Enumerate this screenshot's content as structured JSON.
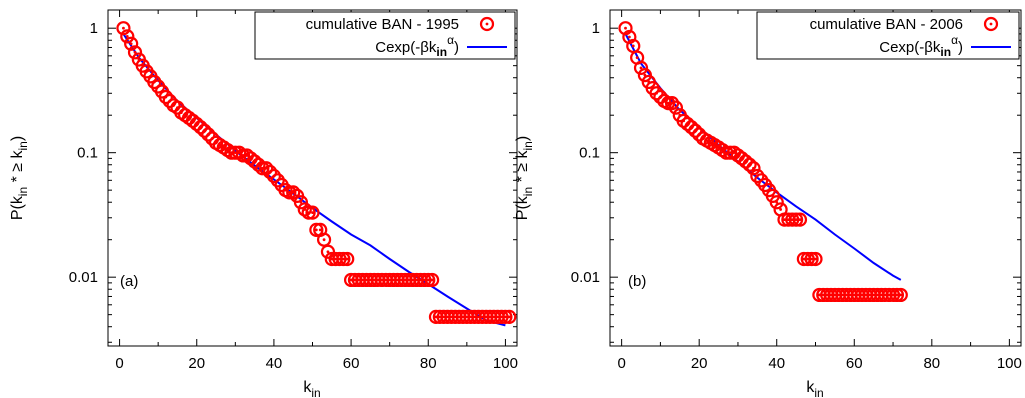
{
  "colors": {
    "series_marker": "#ff0000",
    "series_fit": "#0000ff",
    "axis": "#000000"
  },
  "chart_data": [
    {
      "type": "scatter",
      "panel_label": "(a)",
      "xlabel": {
        "main": "k",
        "sub": "in"
      },
      "ylabel": {
        "p": "P(k",
        "sub1": "in",
        "star": " * ≥ k",
        "sub2": "in",
        "close": ")"
      },
      "yscale": "log",
      "xlim": [
        -3,
        103
      ],
      "ylim": [
        0.0028,
        1.4
      ],
      "xticks": [
        0,
        20,
        40,
        60,
        80,
        100
      ],
      "xtick_labels": [
        "0",
        "20",
        "40",
        "60",
        "80",
        "100"
      ],
      "yticks": [
        1,
        0.1,
        0.01
      ],
      "ytick_labels": [
        "1",
        "0.1",
        "0.01"
      ],
      "legend": {
        "position": "top-right",
        "entries": [
          "cumulative BAN - 1995",
          "Cexp(-βk_in^α)"
        ]
      },
      "legend_fit": {
        "pre": "Cexp(-βk",
        "sub": "in",
        "sup": "α",
        "post": ")"
      },
      "series": [
        {
          "name": "cumulative BAN - 1995",
          "style": "marker",
          "x": [
            1,
            2,
            3,
            4,
            5,
            6,
            7,
            8,
            9,
            10,
            11,
            12,
            13,
            14,
            15,
            16,
            17,
            18,
            19,
            20,
            21,
            22,
            23,
            24,
            25,
            26,
            27,
            28,
            29,
            30,
            31,
            32,
            33,
            34,
            35,
            36,
            37,
            38,
            39,
            40,
            41,
            42,
            43,
            44,
            45,
            46,
            47,
            48,
            49,
            50,
            51,
            52,
            53,
            54,
            55,
            56,
            57,
            58,
            59,
            60,
            61,
            62,
            63,
            64,
            65,
            66,
            67,
            68,
            69,
            70,
            71,
            72,
            73,
            74,
            75,
            76,
            77,
            78,
            79,
            80,
            81,
            82,
            83,
            84,
            85,
            86,
            87,
            88,
            89,
            90,
            91,
            92,
            93,
            94,
            95,
            96,
            97,
            98,
            99,
            100,
            101
          ],
          "y": [
            1,
            0.86,
            0.75,
            0.64,
            0.56,
            0.5,
            0.45,
            0.41,
            0.37,
            0.34,
            0.31,
            0.28,
            0.26,
            0.24,
            0.23,
            0.21,
            0.2,
            0.19,
            0.18,
            0.17,
            0.16,
            0.15,
            0.14,
            0.13,
            0.12,
            0.115,
            0.11,
            0.105,
            0.1,
            0.1,
            0.1,
            0.095,
            0.095,
            0.09,
            0.085,
            0.08,
            0.075,
            0.075,
            0.07,
            0.065,
            0.06,
            0.055,
            0.05,
            0.048,
            0.048,
            0.045,
            0.04,
            0.035,
            0.033,
            0.033,
            0.024,
            0.024,
            0.02,
            0.016,
            0.014,
            0.014,
            0.014,
            0.014,
            0.014,
            0.0095,
            0.0095,
            0.0095,
            0.0095,
            0.0095,
            0.0095,
            0.0095,
            0.0095,
            0.0095,
            0.0095,
            0.0095,
            0.0095,
            0.0095,
            0.0095,
            0.0095,
            0.0095,
            0.0095,
            0.0095,
            0.0095,
            0.0095,
            0.0095,
            0.0095,
            0.0048,
            0.0048,
            0.0048,
            0.0048,
            0.0048,
            0.0048,
            0.0048,
            0.0048,
            0.0048,
            0.0048,
            0.0048,
            0.0048,
            0.0048,
            0.0048,
            0.0048,
            0.0048,
            0.0048,
            0.0048,
            0.0048,
            0.0048
          ]
        },
        {
          "name": "Cexp(-βk_in^α)",
          "style": "line",
          "x": [
            1,
            5,
            10,
            15,
            20,
            25,
            30,
            35,
            40,
            45,
            50,
            55,
            60,
            65,
            70,
            75,
            80,
            85,
            90,
            95,
            100
          ],
          "y": [
            0.9,
            0.58,
            0.38,
            0.26,
            0.19,
            0.14,
            0.104,
            0.079,
            0.061,
            0.047,
            0.036,
            0.028,
            0.022,
            0.018,
            0.014,
            0.011,
            0.0088,
            0.007,
            0.0056,
            0.0045,
            0.0041
          ]
        }
      ]
    },
    {
      "type": "scatter",
      "panel_label": "(b)",
      "xlabel": {
        "main": "k",
        "sub": "in"
      },
      "ylabel": {
        "p": "P(k",
        "sub1": "in",
        "star": " * ≥ k",
        "sub2": "in",
        "close": ")"
      },
      "yscale": "log",
      "xlim": [
        -3,
        103
      ],
      "ylim": [
        0.0028,
        1.4
      ],
      "xticks": [
        0,
        20,
        40,
        60,
        80,
        100
      ],
      "xtick_labels": [
        "0",
        "20",
        "40",
        "60",
        "80",
        "100"
      ],
      "yticks": [
        1,
        0.1,
        0.01
      ],
      "ytick_labels": [
        "1",
        "0.1",
        "0.01"
      ],
      "legend": {
        "position": "top-right",
        "entries": [
          "cumulative BAN - 2006",
          "Cexp(-βk_in^α)"
        ]
      },
      "legend_fit": {
        "pre": "Cexp(-βk",
        "sub": "in",
        "sup": "α",
        "post": ")"
      },
      "series": [
        {
          "name": "cumulative BAN - 2006",
          "style": "marker",
          "x": [
            1,
            2,
            3,
            4,
            5,
            6,
            7,
            8,
            9,
            10,
            11,
            12,
            13,
            14,
            15,
            16,
            17,
            18,
            19,
            20,
            21,
            22,
            23,
            24,
            25,
            26,
            27,
            28,
            29,
            30,
            31,
            32,
            33,
            34,
            35,
            36,
            37,
            38,
            39,
            40,
            41,
            42,
            43,
            44,
            45,
            46,
            47,
            48,
            49,
            50,
            51,
            52,
            53,
            54,
            55,
            56,
            57,
            58,
            59,
            60,
            61,
            62,
            63,
            64,
            65,
            66,
            67,
            68,
            69,
            70,
            71,
            72
          ],
          "y": [
            1,
            0.85,
            0.72,
            0.58,
            0.48,
            0.42,
            0.37,
            0.33,
            0.3,
            0.28,
            0.26,
            0.25,
            0.25,
            0.23,
            0.2,
            0.18,
            0.17,
            0.16,
            0.15,
            0.14,
            0.13,
            0.125,
            0.12,
            0.115,
            0.11,
            0.105,
            0.1,
            0.1,
            0.1,
            0.095,
            0.09,
            0.085,
            0.08,
            0.075,
            0.065,
            0.06,
            0.055,
            0.05,
            0.045,
            0.04,
            0.035,
            0.029,
            0.029,
            0.029,
            0.029,
            0.029,
            0.014,
            0.014,
            0.014,
            0.014,
            0.0072,
            0.0072,
            0.0072,
            0.0072,
            0.0072,
            0.0072,
            0.0072,
            0.0072,
            0.0072,
            0.0072,
            0.0072,
            0.0072,
            0.0072,
            0.0072,
            0.0072,
            0.0072,
            0.0072,
            0.0072,
            0.0072,
            0.0072,
            0.0072,
            0.0072
          ]
        },
        {
          "name": "Cexp(-βk_in^α)",
          "style": "line",
          "x": [
            1,
            5,
            10,
            15,
            20,
            25,
            30,
            35,
            40,
            45,
            50,
            55,
            60,
            65,
            70,
            72
          ],
          "y": [
            0.9,
            0.52,
            0.33,
            0.22,
            0.16,
            0.115,
            0.085,
            0.063,
            0.048,
            0.037,
            0.029,
            0.022,
            0.017,
            0.013,
            0.0103,
            0.0095
          ]
        }
      ]
    }
  ]
}
